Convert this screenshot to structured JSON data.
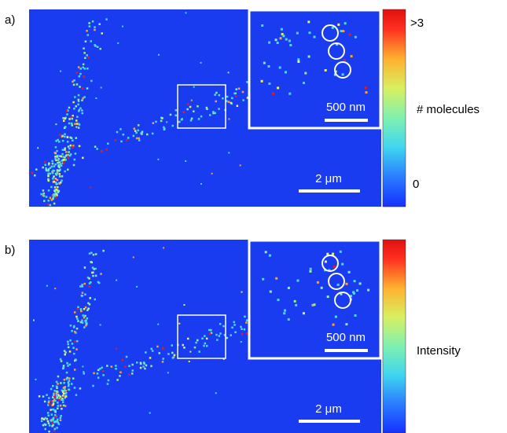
{
  "panels": [
    {
      "label": "a)",
      "inset_scale": "500 nm",
      "scale": "2 μm",
      "colorbar": {
        "max": ">3",
        "min": "0",
        "title": "# molecules"
      }
    },
    {
      "label": "b)",
      "inset_scale": "500 nm",
      "scale": "2 μm",
      "colorbar": {
        "title": "Intensity"
      }
    }
  ]
}
